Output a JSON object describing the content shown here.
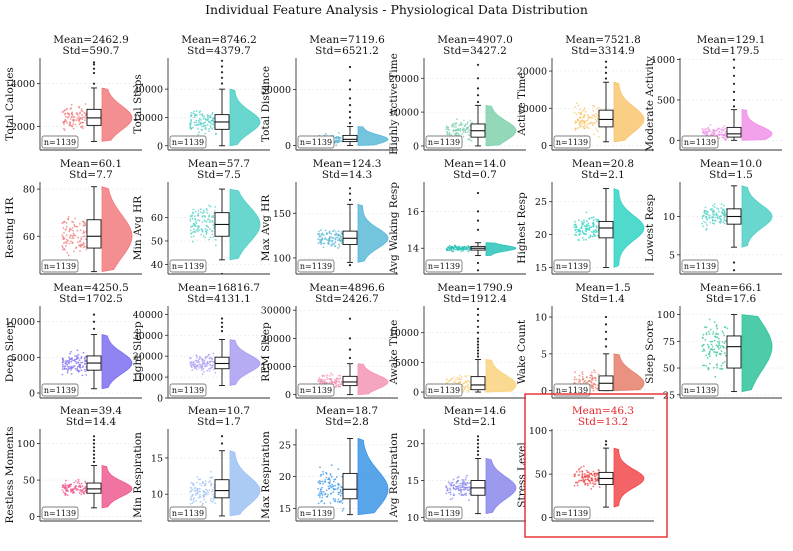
{
  "figure_title": "Individual Feature Analysis - Physiological Data Distribution",
  "chart_data": {
    "type": "raincloud",
    "n_label": "n=1139",
    "highlight_color": "#e8272a",
    "panels": [
      {
        "name": "Total Calories",
        "mean": "2462.9",
        "std": "590.7",
        "median": 2400,
        "q1": 2050,
        "q3": 2800,
        "wlo": 1300,
        "whi": 3800,
        "yticks": [
          2000,
          4000
        ],
        "ylim": [
          900,
          5200
        ],
        "color": "#f17a7e",
        "dots": [
          4000,
          4500,
          4700,
          4900,
          5000
        ]
      },
      {
        "name": "Total Steps",
        "mean": "8746.2",
        "std": "4379.7",
        "median": 8400,
        "q1": 5800,
        "q3": 11000,
        "wlo": 0,
        "whi": 20000,
        "yticks": [
          0,
          10000,
          20000
        ],
        "ylim": [
          -1500,
          31000
        ],
        "color": "#4fd0c6",
        "dots": [
          22000,
          24000,
          26000,
          28000,
          30000
        ]
      },
      {
        "name": "Total Distance",
        "mean": "7119.6",
        "std": "6521.2",
        "median": 5500,
        "q1": 3500,
        "q3": 9000,
        "wlo": 0,
        "whi": 17000,
        "yticks": [
          0,
          50000
        ],
        "ylim": [
          -4000,
          78000
        ],
        "color": "#5bbad6",
        "dots": [
          20000,
          25000,
          30000,
          36000,
          42000,
          50000,
          58000,
          70000
        ]
      },
      {
        "name": "Highly Active Time",
        "mean": "4907.0",
        "std": "3427.2",
        "median": 4500,
        "q1": 2600,
        "q3": 6500,
        "wlo": 0,
        "whi": 12000,
        "yticks": [
          0,
          10000,
          20000
        ],
        "ylim": [
          -1200,
          26000
        ],
        "color": "#7fd1ad",
        "dots": [
          13000,
          15000,
          17000,
          20000,
          24000
        ]
      },
      {
        "name": "Active Time",
        "mean": "7521.8",
        "std": "3314.9",
        "median": 7000,
        "q1": 5000,
        "q3": 9500,
        "wlo": 1000,
        "whi": 17000,
        "yticks": [
          0,
          10000,
          20000
        ],
        "ylim": [
          -1200,
          23500
        ],
        "color": "#f9c66f",
        "dots": [
          18000,
          19500,
          21000,
          22500
        ]
      },
      {
        "name": "Moderate Activity",
        "mean": "129.1",
        "std": "179.5",
        "median": 80,
        "q1": 40,
        "q3": 160,
        "wlo": 0,
        "whi": 380,
        "yticks": [
          0,
          500,
          1000
        ],
        "ylim": [
          -120,
          1020
        ],
        "color": "#f190e8",
        "dots": [
          420,
          500,
          600,
          700,
          800,
          900,
          1000
        ]
      },
      {
        "name": "Resting HR",
        "mean": "60.1",
        "std": "7.7",
        "median": 60,
        "q1": 55,
        "q3": 67,
        "wlo": 45,
        "whi": 81,
        "yticks": [
          60,
          80
        ],
        "ylim": [
          44,
          83
        ],
        "color": "#f17a7e",
        "dots": []
      },
      {
        "name": "Min Avg HR",
        "mean": "57.7",
        "std": "7.5",
        "median": 57,
        "q1": 52,
        "q3": 62,
        "wlo": 42,
        "whi": 72,
        "yticks": [
          40,
          50,
          60
        ],
        "ylim": [
          36,
          75
        ],
        "color": "#4fd0c6",
        "dots": [
          36
        ]
      },
      {
        "name": "Max Avg HR",
        "mean": "124.3",
        "std": "14.3",
        "median": 122,
        "q1": 115,
        "q3": 130,
        "wlo": 95,
        "whi": 160,
        "yticks": [
          100,
          150
        ],
        "ylim": [
          82,
          185
        ],
        "color": "#5bbad6",
        "dots": [
          165,
          172,
          178,
          92
        ]
      },
      {
        "name": "Avg Waking Resp",
        "mean": "14.0",
        "std": "0.7",
        "median": 14,
        "q1": 13.9,
        "q3": 14.1,
        "wlo": 13.6,
        "whi": 14.3,
        "yticks": [
          14,
          16
        ],
        "ylim": [
          12.6,
          17.6
        ],
        "color": "#2bc3b7",
        "dots": [
          12.8,
          13.2,
          15.0,
          15.5,
          16.0,
          17.0
        ]
      },
      {
        "name": "Highest Resp",
        "mean": "20.8",
        "std": "2.1",
        "median": 21,
        "q1": 19.5,
        "q3": 22,
        "wlo": 15,
        "whi": 27,
        "yticks": [
          15,
          20,
          25
        ],
        "ylim": [
          14,
          28
        ],
        "color": "#31d4c4",
        "dots": []
      },
      {
        "name": "Lowest Resp",
        "mean": "10.0",
        "std": "1.5",
        "median": 10,
        "q1": 9,
        "q3": 11,
        "wlo": 6,
        "whi": 14,
        "yticks": [
          5,
          10
        ],
        "ylim": [
          2.5,
          14.5
        ],
        "color": "#4fd0c6",
        "dots": [
          3,
          4
        ]
      },
      {
        "name": "Deep Sleep",
        "mean": "4250.5",
        "std": "1702.5",
        "median": 4200,
        "q1": 3200,
        "q3": 5200,
        "wlo": 600,
        "whi": 8200,
        "yticks": [
          0,
          5000,
          10000
        ],
        "ylim": [
          -700,
          12200
        ],
        "color": "#7b6ef0",
        "dots": [
          9000,
          10000,
          11000
        ]
      },
      {
        "name": "Light Sleep",
        "mean": "16816.7",
        "std": "4131.1",
        "median": 16500,
        "q1": 14000,
        "q3": 19500,
        "wlo": 6000,
        "whi": 28000,
        "yticks": [
          0,
          10000,
          20000,
          30000,
          40000
        ],
        "ylim": [
          0,
          44000
        ],
        "color": "#a99df2",
        "dots": [
          32000,
          34000,
          36000,
          38000
        ]
      },
      {
        "name": "REM Sleep",
        "mean": "4896.6",
        "std": "2426.7",
        "median": 4500,
        "q1": 3200,
        "q3": 6500,
        "wlo": 0,
        "whi": 11000,
        "yticks": [
          0,
          10000,
          20000,
          30000
        ],
        "ylim": [
          -1200,
          31500
        ],
        "color": "#f495b6",
        "dots": [
          13000,
          16000,
          20000,
          27000
        ]
      },
      {
        "name": "Awake Time",
        "mean": "1790.9",
        "std": "1912.4",
        "median": 1200,
        "q1": 400,
        "q3": 2600,
        "wlo": 0,
        "whi": 5500,
        "yticks": [
          0,
          5000,
          10000
        ],
        "ylim": [
          -1000,
          14500
        ],
        "color": "#f9d27c",
        "dots": [
          6000,
          6500,
          7000,
          7500,
          8000,
          8500,
          9000,
          10000,
          11000,
          12000,
          13000,
          14000
        ]
      },
      {
        "name": "Wake Count",
        "mean": "1.5",
        "std": "1.4",
        "median": 1,
        "q1": 0,
        "q3": 2,
        "wlo": 0,
        "whi": 5,
        "yticks": [
          0,
          5,
          10
        ],
        "ylim": [
          -1,
          11.5
        ],
        "color": "#e57f6c",
        "dots": [
          6,
          7,
          8,
          9,
          10
        ]
      },
      {
        "name": "Sleep Score",
        "mean": "66.1",
        "std": "17.6",
        "median": 70,
        "q1": 50,
        "q3": 80,
        "wlo": 28,
        "whi": 100,
        "yticks": [
          25,
          50,
          75,
          100
        ],
        "ylim": [
          22,
          108
        ],
        "color": "#2fc39a",
        "dots": []
      },
      {
        "name": "Restless Moments",
        "mean": "39.4",
        "std": "14.4",
        "median": 38,
        "q1": 32,
        "q3": 46,
        "wlo": 12,
        "whi": 70,
        "yticks": [
          0,
          50,
          100
        ],
        "ylim": [
          -6,
          120
        ],
        "color": "#ef5a92",
        "dots": [
          75,
          80,
          85,
          90,
          95,
          100,
          105,
          110
        ]
      },
      {
        "name": "Min Respiration",
        "mean": "10.7",
        "std": "1.7",
        "median": 10.5,
        "q1": 9.5,
        "q3": 12,
        "wlo": 7,
        "whi": 16,
        "yticks": [
          10,
          15
        ],
        "ylim": [
          6.3,
          19
        ],
        "color": "#9ec2f2",
        "dots": [
          17,
          18
        ]
      },
      {
        "name": "Max Respiration",
        "mean": "18.7",
        "std": "2.8",
        "median": 18,
        "q1": 16.5,
        "q3": 20.5,
        "wlo": 14,
        "whi": 26,
        "yticks": [
          15,
          20,
          25
        ],
        "ylim": [
          13,
          27.5
        ],
        "color": "#3b95e6",
        "dots": []
      },
      {
        "name": "Avg Respiration",
        "mean": "14.6",
        "std": "2.1",
        "median": 14,
        "q1": 13,
        "q3": 15,
        "wlo": 10.5,
        "whi": 18,
        "yticks": [
          10,
          15,
          20
        ],
        "ylim": [
          9.5,
          22
        ],
        "color": "#8a88ec",
        "dots": [
          18.5,
          19,
          19.5,
          20,
          20.5,
          21
        ]
      },
      {
        "name": "Stress Level",
        "mean": "46.3",
        "std": "13.2",
        "median": 45,
        "q1": 38,
        "q3": 52,
        "wlo": 12,
        "whi": 80,
        "yticks": [
          0,
          50,
          100
        ],
        "ylim": [
          -4,
          102
        ],
        "color": "#f2484b",
        "dots": [
          84,
          88
        ],
        "highlight": true
      }
    ]
  }
}
